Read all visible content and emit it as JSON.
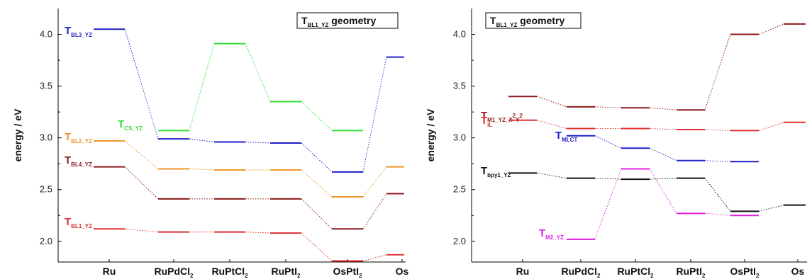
{
  "colors": {
    "blue": "#1f1fc8",
    "green": "#33dd33",
    "orange": "#f0962a",
    "darkred": "#8b1a1a",
    "red": "#e03030",
    "black": "#111111",
    "magenta": "#e020e0"
  },
  "chart_data": [
    {
      "type": "line",
      "title": {
        "main": "T",
        "sub": "BL1_YZ",
        "rest": " geometry"
      },
      "ylabel": "energy / eV",
      "ylim": [
        1.8,
        4.25
      ],
      "yticks": [
        "2.0",
        "2.5",
        "3.0",
        "3.5",
        "4.0"
      ],
      "ytick_values": [
        2.0,
        2.5,
        3.0,
        3.5,
        4.0
      ],
      "categories": [
        {
          "main": "Ru",
          "sub": ""
        },
        {
          "main": "RuPdCl",
          "sub": "2"
        },
        {
          "main": "RuPtCl",
          "sub": "2"
        },
        {
          "main": "RuPtI",
          "sub": "2"
        },
        {
          "main": "OsPtI",
          "sub": "2"
        },
        {
          "main": "Os",
          "sub": ""
        }
      ],
      "series": [
        {
          "label": {
            "main": "T",
            "sub": "BL3_YZ",
            "sup": ""
          },
          "color": "blue",
          "values": [
            4.05,
            2.99,
            2.96,
            2.95,
            2.67,
            3.78
          ]
        },
        {
          "label": {
            "main": "T",
            "sub": "CS_YZ",
            "sup": ""
          },
          "color": "green",
          "values": [
            null,
            3.07,
            3.91,
            3.35,
            3.07,
            null
          ]
        },
        {
          "label": {
            "main": "T",
            "sub": "BL2_YZ",
            "sup": ""
          },
          "color": "orange",
          "values": [
            2.97,
            2.7,
            2.69,
            2.69,
            2.43,
            2.72
          ]
        },
        {
          "label": {
            "main": "T",
            "sub": "BL4_YZ",
            "sup": ""
          },
          "color": "darkred",
          "values": [
            2.72,
            2.41,
            2.41,
            2.41,
            2.12,
            2.46
          ]
        },
        {
          "label": {
            "main": "T",
            "sub": "BL1_YZ",
            "sup": ""
          },
          "color": "red",
          "values": [
            2.12,
            2.09,
            2.09,
            2.08,
            1.81,
            1.87
          ]
        }
      ]
    },
    {
      "type": "line",
      "title": {
        "main": "T",
        "sub": "BL1_YZ",
        "rest": " geometry"
      },
      "ylabel": "energy / eV",
      "ylim": [
        1.8,
        4.25
      ],
      "yticks": [
        "2.0",
        "2.5",
        "3.0",
        "3.5",
        "4.0"
      ],
      "ytick_values": [
        2.0,
        2.5,
        3.0,
        3.5,
        4.0
      ],
      "categories": [
        {
          "main": "Ru",
          "sub": ""
        },
        {
          "main": "RuPdCl",
          "sub": "2"
        },
        {
          "main": "RuPtCl",
          "sub": "2"
        },
        {
          "main": "RuPtI",
          "sub": "2"
        },
        {
          "main": "OsPtI",
          "sub": "2"
        },
        {
          "main": "Os",
          "sub": ""
        }
      ],
      "series": [
        {
          "label": {
            "main": "T",
            "sub": "M1_YZ_X",
            "sup": "2",
            "sub2": "Y",
            "sup2": "2"
          },
          "color": "darkred",
          "values": [
            3.4,
            3.3,
            3.29,
            3.27,
            4.0,
            4.1
          ]
        },
        {
          "label": {
            "main": "T",
            "sub": "IL",
            "sup": ""
          },
          "color": "red",
          "values": [
            3.17,
            3.09,
            3.09,
            3.08,
            3.07,
            3.15
          ]
        },
        {
          "label": {
            "main": "T",
            "sub": "MLCT",
            "sup": ""
          },
          "color": "blue",
          "values": [
            null,
            3.02,
            2.9,
            2.78,
            2.77,
            null
          ]
        },
        {
          "label": {
            "main": "T",
            "sub": "bpy1_YZ",
            "sup": ""
          },
          "color": "black",
          "values": [
            2.66,
            2.61,
            2.6,
            2.61,
            2.29,
            2.35
          ]
        },
        {
          "label": {
            "main": "T",
            "sub": "M2_YZ",
            "sup": ""
          },
          "color": "magenta",
          "values": [
            null,
            2.02,
            2.7,
            2.27,
            2.25,
            null
          ]
        }
      ]
    }
  ]
}
